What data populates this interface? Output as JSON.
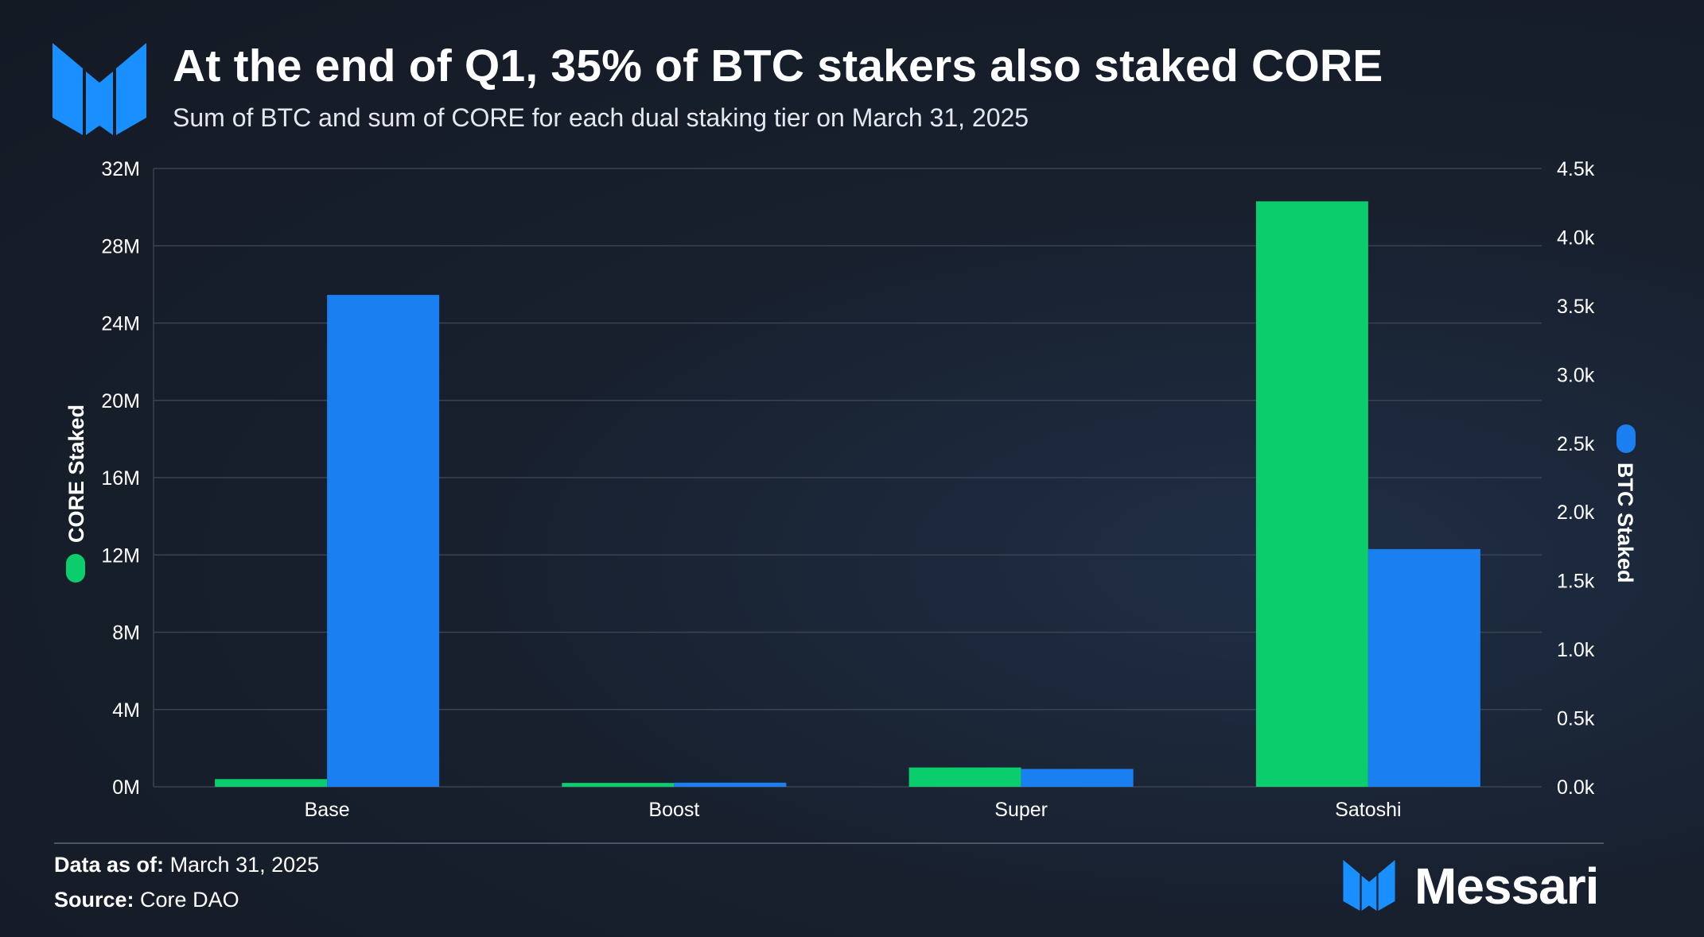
{
  "header": {
    "title": "At the end of Q1, 35% of BTC stakers also staked CORE",
    "subtitle": "Sum of BTC and sum of CORE for each dual staking tier on March 31, 2025"
  },
  "footer": {
    "data_as_of_label": "Data as of:",
    "data_as_of_value": "March 31, 2025",
    "source_label": "Source:",
    "source_value": "Core DAO",
    "brand": "Messari"
  },
  "colors": {
    "core": "#0ccd6c",
    "btc": "#1a7ff0",
    "brand_blue": "#1a8fff",
    "grid": "#3a4352",
    "axis_text": "#ffffff"
  },
  "chart_data": {
    "type": "bar",
    "categories": [
      "Base",
      "Boost",
      "Super",
      "Satoshi"
    ],
    "series": [
      {
        "name": "CORE Staked",
        "axis": "left",
        "values": [
          400000,
          200000,
          1000000,
          30300000
        ]
      },
      {
        "name": "BTC Staked",
        "axis": "right",
        "values": [
          3580,
          30,
          130,
          1730
        ]
      }
    ],
    "y_left": {
      "label": "CORE Staked",
      "lim": [
        0,
        32000000
      ],
      "ticks": [
        0,
        4000000,
        8000000,
        12000000,
        16000000,
        20000000,
        24000000,
        28000000,
        32000000
      ],
      "tick_labels": [
        "0M",
        "4M",
        "8M",
        "12M",
        "16M",
        "20M",
        "24M",
        "28M",
        "32M"
      ]
    },
    "y_right": {
      "label": "BTC Staked",
      "lim": [
        0,
        4500
      ],
      "ticks": [
        0,
        500,
        1000,
        1500,
        2000,
        2500,
        3000,
        3500,
        4000,
        4500
      ],
      "tick_labels": [
        "0.0k",
        "0.5k",
        "1.0k",
        "1.5k",
        "2.0k",
        "2.5k",
        "3.0k",
        "3.5k",
        "4.0k",
        "4.5k"
      ]
    },
    "grid": true
  }
}
